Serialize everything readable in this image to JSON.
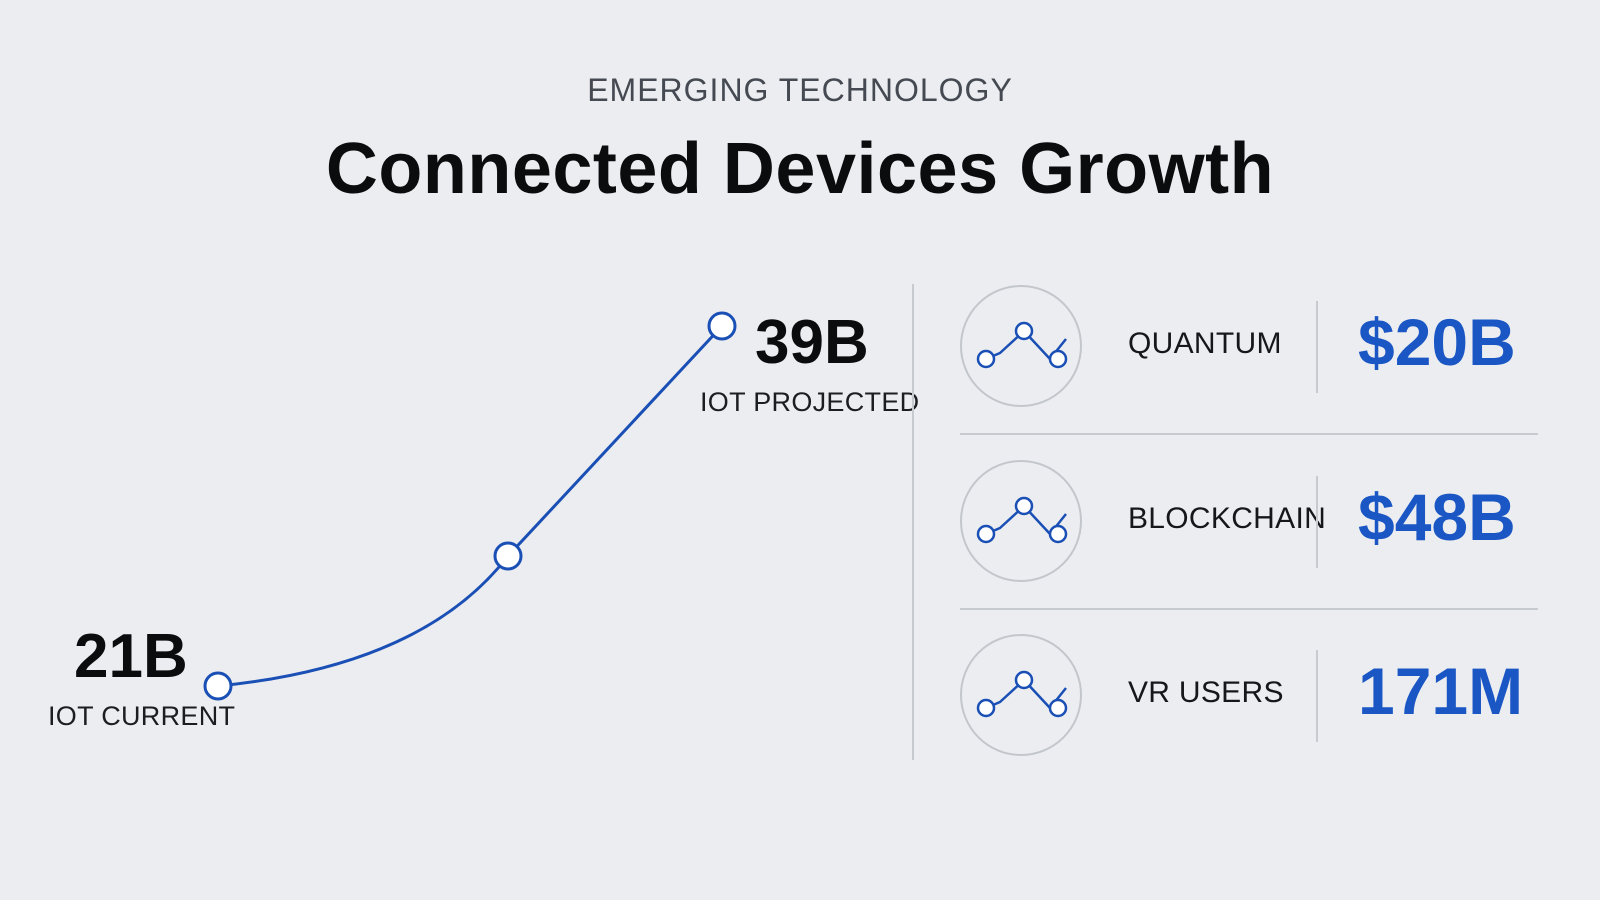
{
  "header": {
    "eyebrow": "EMERGING TECHNOLOGY",
    "title": "Connected Devices Growth"
  },
  "chart_data": {
    "type": "line",
    "title": "Connected Devices Growth",
    "series": [
      {
        "values": [
          21,
          27.5,
          39
        ]
      }
    ],
    "start": {
      "value": "21B",
      "label": "IOT CURRENT"
    },
    "end": {
      "value": "39B",
      "label": "IOT PROJECTED"
    },
    "color": "#1a4fb5"
  },
  "stats": [
    {
      "label": "QUANTUM",
      "value": "$20B",
      "icon": "trend-line-icon"
    },
    {
      "label": "BLOCKCHAIN",
      "value": "$48B",
      "icon": "trend-line-icon"
    },
    {
      "label": "VR USERS",
      "value": "171M",
      "icon": "trend-line-icon"
    }
  ],
  "colors": {
    "accent": "#1a56c4",
    "background": "#ebedf0",
    "divider": "#c7cbd0"
  }
}
